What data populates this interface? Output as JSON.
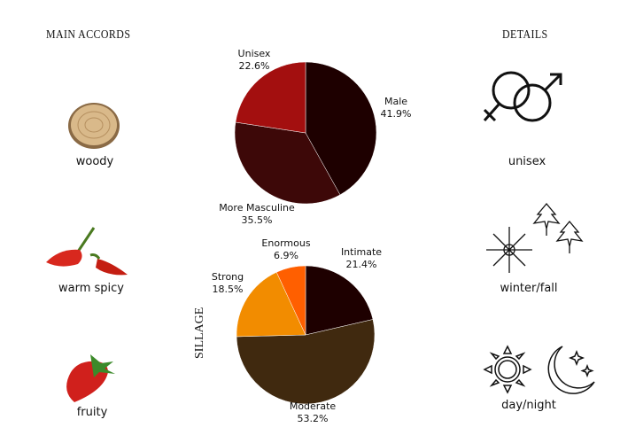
{
  "headers": {
    "main_accords": "MAIN ACCORDS",
    "details": "DETAILS",
    "sillage": "SILLAGE"
  },
  "accords": [
    {
      "label": "woody",
      "icon": "wood-slice-icon"
    },
    {
      "label": "warm spicy",
      "icon": "chili-pepper-icon"
    },
    {
      "label": "fruity",
      "icon": "strawberry-icon"
    }
  ],
  "details": [
    {
      "label": "unisex",
      "icon": "gender-symbols-icon"
    },
    {
      "label": "winter/fall",
      "icon": "snowflake-leaves-icon"
    },
    {
      "label": "day/night",
      "icon": "sun-moon-icon"
    }
  ],
  "chart_data": [
    {
      "type": "pie",
      "slices": [
        {
          "name": "Male",
          "value": 41.9,
          "label": "41.9%",
          "color": "#1e0000"
        },
        {
          "name": "More Masculine",
          "value": 35.5,
          "label": "35.5%",
          "color": "#3d0808"
        },
        {
          "name": "Unisex",
          "value": 22.6,
          "label": "22.6%",
          "color": "#a30f0f"
        }
      ]
    },
    {
      "type": "pie",
      "title": "SILLAGE",
      "slices": [
        {
          "name": "Intimate",
          "value": 21.4,
          "label": "21.4%",
          "color": "#1e0000"
        },
        {
          "name": "Moderate",
          "value": 53.2,
          "label": "53.2%",
          "color": "#40290f"
        },
        {
          "name": "Strong",
          "value": 18.5,
          "label": "18.5%",
          "color": "#f28c00"
        },
        {
          "name": "Enormous",
          "value": 6.9,
          "label": "6.9%",
          "color": "#ff5f00"
        }
      ]
    }
  ]
}
